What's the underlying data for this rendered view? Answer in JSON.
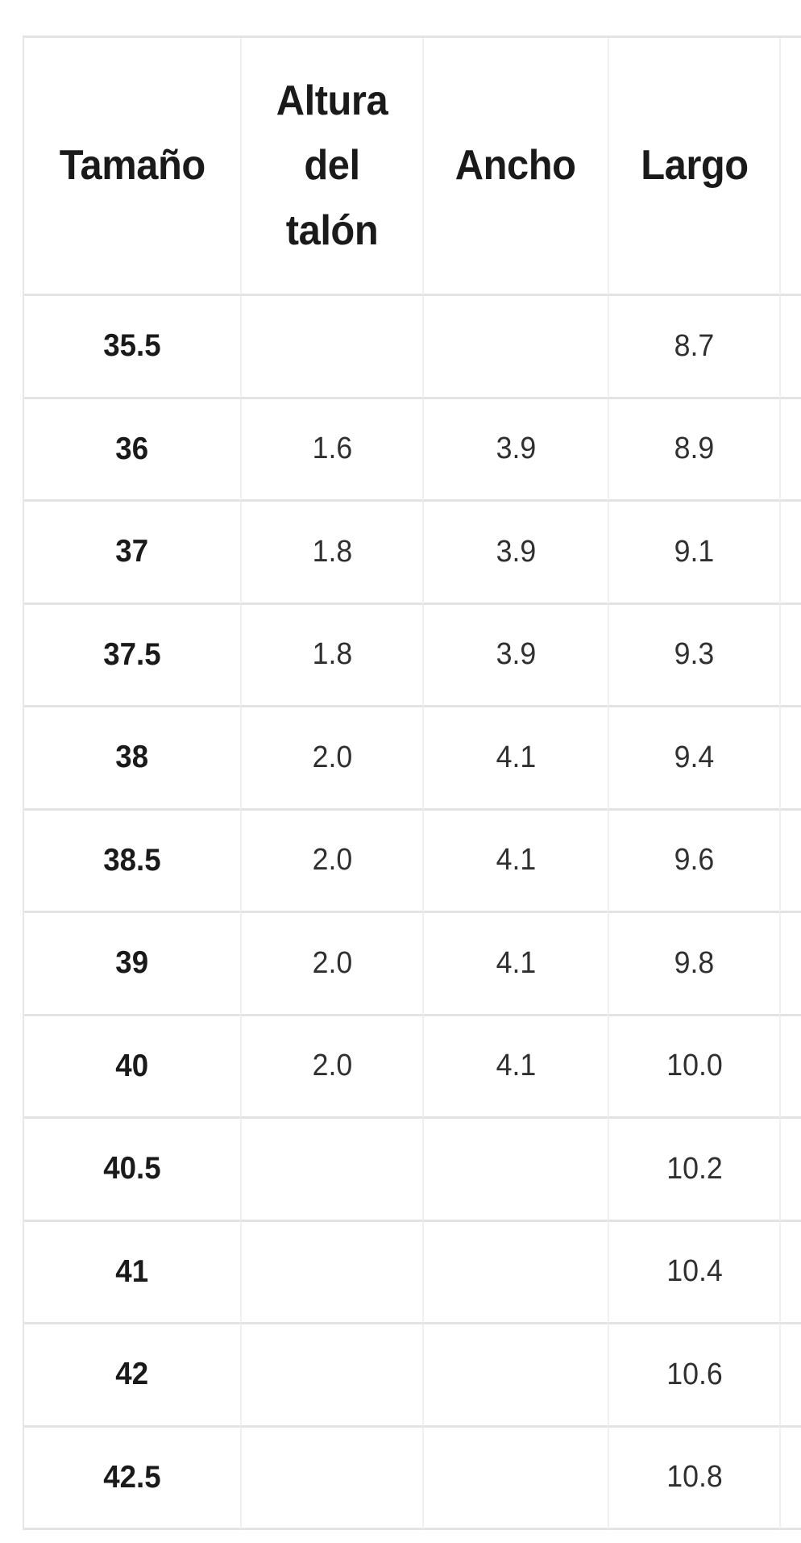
{
  "page": {
    "background": "#ffffff"
  },
  "size_chart": {
    "columns": [
      {
        "id": "size",
        "label": "Tamaño"
      },
      {
        "id": "heel-height",
        "label": "Altura del talón"
      },
      {
        "id": "width",
        "label": "Ancho"
      },
      {
        "id": "length",
        "label": "Largo"
      },
      {
        "id": "overflow",
        "label": ""
      }
    ],
    "rows": [
      [
        "35.5",
        "",
        "",
        "8.7",
        ""
      ],
      [
        "36",
        "1.6",
        "3.9",
        "8.9",
        ""
      ],
      [
        "37",
        "1.8",
        "3.9",
        "9.1",
        ""
      ],
      [
        "37.5",
        "1.8",
        "3.9",
        "9.3",
        ""
      ],
      [
        "38",
        "2.0",
        "4.1",
        "9.4",
        ""
      ],
      [
        "38.5",
        "2.0",
        "4.1",
        "9.6",
        ""
      ],
      [
        "39",
        "2.0",
        "4.1",
        "9.8",
        ""
      ],
      [
        "40",
        "2.0",
        "4.1",
        "10.0",
        ""
      ],
      [
        "40.5",
        "",
        "",
        "10.2",
        ""
      ],
      [
        "41",
        "",
        "",
        "10.4",
        ""
      ],
      [
        "42",
        "",
        "",
        "10.6",
        ""
      ],
      [
        "42.5",
        "",
        "",
        "10.8",
        ""
      ]
    ]
  },
  "colors": {
    "background": "#ffffff",
    "header_text": "#1a1a1a",
    "cell_text": "#303030",
    "grid_line_horizontal": "#e3e3e6",
    "grid_line_vertical": "#f0f0f2"
  }
}
